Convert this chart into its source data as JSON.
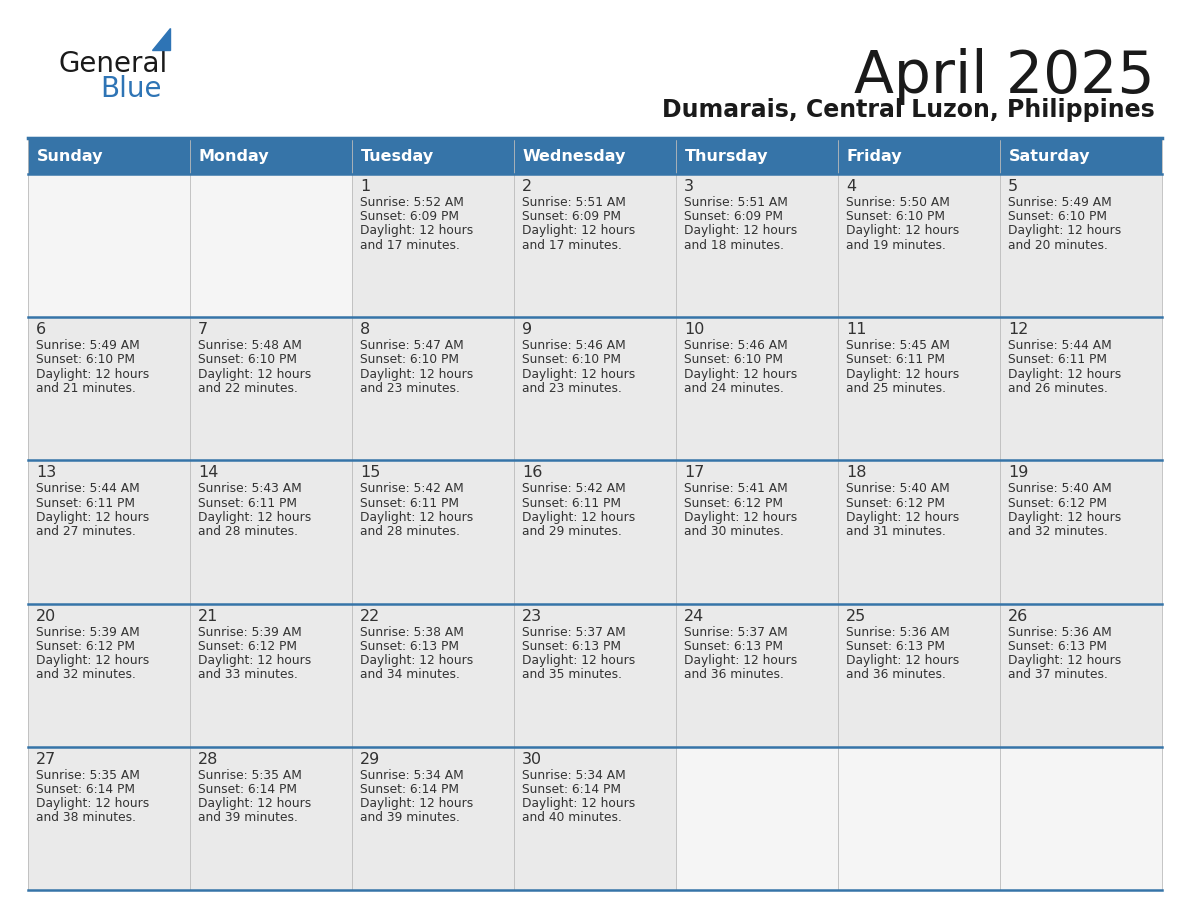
{
  "title": "April 2025",
  "subtitle": "Dumarais, Central Luzon, Philippines",
  "header_bg": "#3674A8",
  "header_text_color": "#FFFFFF",
  "border_color": "#3674A8",
  "row_sep_color": "#3674A8",
  "cell_bg_filled": "#EAEAEA",
  "cell_bg_empty": "#F5F5F5",
  "day_headers": [
    "Sunday",
    "Monday",
    "Tuesday",
    "Wednesday",
    "Thursday",
    "Friday",
    "Saturday"
  ],
  "title_color": "#1A1A1A",
  "subtitle_color": "#1A1A1A",
  "cell_text_color": "#333333",
  "day_num_color": "#333333",
  "logo_general_color": "#1A1A1A",
  "logo_blue_color": "#2E74B5",
  "logo_triangle_color": "#2E74B5",
  "calendar_data": [
    [
      {
        "day": "",
        "sunrise": "",
        "sunset": "",
        "daylight": ""
      },
      {
        "day": "",
        "sunrise": "",
        "sunset": "",
        "daylight": ""
      },
      {
        "day": "1",
        "sunrise": "5:52 AM",
        "sunset": "6:09 PM",
        "daylight": "12 hours and 17 minutes."
      },
      {
        "day": "2",
        "sunrise": "5:51 AM",
        "sunset": "6:09 PM",
        "daylight": "12 hours and 17 minutes."
      },
      {
        "day": "3",
        "sunrise": "5:51 AM",
        "sunset": "6:09 PM",
        "daylight": "12 hours and 18 minutes."
      },
      {
        "day": "4",
        "sunrise": "5:50 AM",
        "sunset": "6:10 PM",
        "daylight": "12 hours and 19 minutes."
      },
      {
        "day": "5",
        "sunrise": "5:49 AM",
        "sunset": "6:10 PM",
        "daylight": "12 hours and 20 minutes."
      }
    ],
    [
      {
        "day": "6",
        "sunrise": "5:49 AM",
        "sunset": "6:10 PM",
        "daylight": "12 hours and 21 minutes."
      },
      {
        "day": "7",
        "sunrise": "5:48 AM",
        "sunset": "6:10 PM",
        "daylight": "12 hours and 22 minutes."
      },
      {
        "day": "8",
        "sunrise": "5:47 AM",
        "sunset": "6:10 PM",
        "daylight": "12 hours and 23 minutes."
      },
      {
        "day": "9",
        "sunrise": "5:46 AM",
        "sunset": "6:10 PM",
        "daylight": "12 hours and 23 minutes."
      },
      {
        "day": "10",
        "sunrise": "5:46 AM",
        "sunset": "6:10 PM",
        "daylight": "12 hours and 24 minutes."
      },
      {
        "day": "11",
        "sunrise": "5:45 AM",
        "sunset": "6:11 PM",
        "daylight": "12 hours and 25 minutes."
      },
      {
        "day": "12",
        "sunrise": "5:44 AM",
        "sunset": "6:11 PM",
        "daylight": "12 hours and 26 minutes."
      }
    ],
    [
      {
        "day": "13",
        "sunrise": "5:44 AM",
        "sunset": "6:11 PM",
        "daylight": "12 hours and 27 minutes."
      },
      {
        "day": "14",
        "sunrise": "5:43 AM",
        "sunset": "6:11 PM",
        "daylight": "12 hours and 28 minutes."
      },
      {
        "day": "15",
        "sunrise": "5:42 AM",
        "sunset": "6:11 PM",
        "daylight": "12 hours and 28 minutes."
      },
      {
        "day": "16",
        "sunrise": "5:42 AM",
        "sunset": "6:11 PM",
        "daylight": "12 hours and 29 minutes."
      },
      {
        "day": "17",
        "sunrise": "5:41 AM",
        "sunset": "6:12 PM",
        "daylight": "12 hours and 30 minutes."
      },
      {
        "day": "18",
        "sunrise": "5:40 AM",
        "sunset": "6:12 PM",
        "daylight": "12 hours and 31 minutes."
      },
      {
        "day": "19",
        "sunrise": "5:40 AM",
        "sunset": "6:12 PM",
        "daylight": "12 hours and 32 minutes."
      }
    ],
    [
      {
        "day": "20",
        "sunrise": "5:39 AM",
        "sunset": "6:12 PM",
        "daylight": "12 hours and 32 minutes."
      },
      {
        "day": "21",
        "sunrise": "5:39 AM",
        "sunset": "6:12 PM",
        "daylight": "12 hours and 33 minutes."
      },
      {
        "day": "22",
        "sunrise": "5:38 AM",
        "sunset": "6:13 PM",
        "daylight": "12 hours and 34 minutes."
      },
      {
        "day": "23",
        "sunrise": "5:37 AM",
        "sunset": "6:13 PM",
        "daylight": "12 hours and 35 minutes."
      },
      {
        "day": "24",
        "sunrise": "5:37 AM",
        "sunset": "6:13 PM",
        "daylight": "12 hours and 36 minutes."
      },
      {
        "day": "25",
        "sunrise": "5:36 AM",
        "sunset": "6:13 PM",
        "daylight": "12 hours and 36 minutes."
      },
      {
        "day": "26",
        "sunrise": "5:36 AM",
        "sunset": "6:13 PM",
        "daylight": "12 hours and 37 minutes."
      }
    ],
    [
      {
        "day": "27",
        "sunrise": "5:35 AM",
        "sunset": "6:14 PM",
        "daylight": "12 hours and 38 minutes."
      },
      {
        "day": "28",
        "sunrise": "5:35 AM",
        "sunset": "6:14 PM",
        "daylight": "12 hours and 39 minutes."
      },
      {
        "day": "29",
        "sunrise": "5:34 AM",
        "sunset": "6:14 PM",
        "daylight": "12 hours and 39 minutes."
      },
      {
        "day": "30",
        "sunrise": "5:34 AM",
        "sunset": "6:14 PM",
        "daylight": "12 hours and 40 minutes."
      },
      {
        "day": "",
        "sunrise": "",
        "sunset": "",
        "daylight": ""
      },
      {
        "day": "",
        "sunrise": "",
        "sunset": "",
        "daylight": ""
      },
      {
        "day": "",
        "sunrise": "",
        "sunset": "",
        "daylight": ""
      }
    ]
  ]
}
